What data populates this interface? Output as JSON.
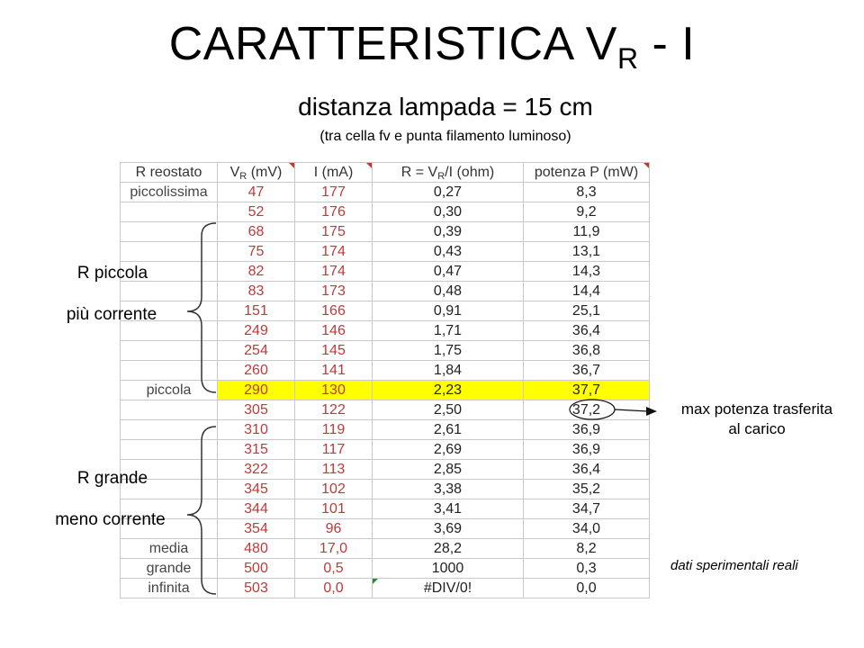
{
  "title": {
    "main": "CARATTERISTICA V",
    "sub": "R",
    "tail": " - I"
  },
  "subtitle": "distanza lampada = 15 cm",
  "subnote": "(tra cella fv e punta filamento luminoso)",
  "table": {
    "headers": [
      {
        "text": "R reostato"
      },
      {
        "pre": "V",
        "sub": "R",
        "post": " (mV)"
      },
      {
        "text": "I (mA)"
      },
      {
        "pre": "R = V",
        "sub": "R",
        "post": "/I (ohm)"
      },
      {
        "text": "potenza P (mW)"
      }
    ],
    "rows": [
      [
        "piccolissima",
        "47",
        "177",
        "0,27",
        "8,3"
      ],
      [
        "",
        "52",
        "176",
        "0,30",
        "9,2"
      ],
      [
        "",
        "68",
        "175",
        "0,39",
        "11,9"
      ],
      [
        "",
        "75",
        "174",
        "0,43",
        "13,1"
      ],
      [
        "",
        "82",
        "174",
        "0,47",
        "14,3"
      ],
      [
        "",
        "83",
        "173",
        "0,48",
        "14,4"
      ],
      [
        "",
        "151",
        "166",
        "0,91",
        "25,1"
      ],
      [
        "",
        "249",
        "146",
        "1,71",
        "36,4"
      ],
      [
        "",
        "254",
        "145",
        "1,75",
        "36,8"
      ],
      [
        "",
        "260",
        "141",
        "1,84",
        "36,7"
      ],
      [
        "piccola",
        "290",
        "130",
        "2,23",
        "37,7"
      ],
      [
        "",
        "305",
        "122",
        "2,50",
        "37,2"
      ],
      [
        "",
        "310",
        "119",
        "2,61",
        "36,9"
      ],
      [
        "",
        "315",
        "117",
        "2,69",
        "36,9"
      ],
      [
        "",
        "322",
        "113",
        "2,85",
        "36,4"
      ],
      [
        "",
        "345",
        "102",
        "3,38",
        "35,2"
      ],
      [
        "",
        "344",
        "101",
        "3,41",
        "34,7"
      ],
      [
        "",
        "354",
        "96",
        "3,69",
        "34,0"
      ],
      [
        "media",
        "480",
        "17,0",
        "28,2",
        "8,2"
      ],
      [
        "grande",
        "500",
        "0,5",
        "1000",
        "0,3"
      ],
      [
        "infinita",
        "503",
        "0,0",
        "#DIV/0!",
        "0,0"
      ]
    ],
    "highlight_color": "#ffff00",
    "value_color": "#c0393b"
  },
  "labels": {
    "r_piccola": "R piccola",
    "piu_corrente": "più corrente",
    "r_grande": "R grande",
    "meno_corrente": "meno corrente",
    "max_potenza_1": "max potenza trasferita",
    "max_potenza_2": "al carico",
    "footnote": "dati sperimentali reali"
  }
}
